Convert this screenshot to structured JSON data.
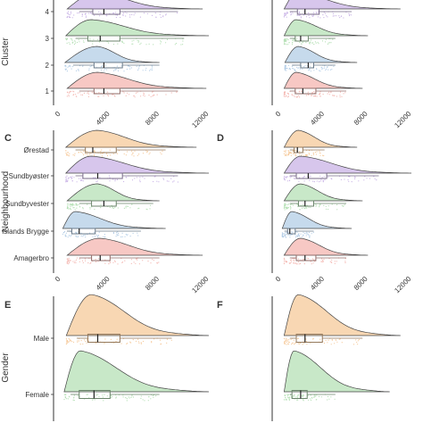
{
  "chart_data": [
    {
      "id": "A",
      "panel_label": "",
      "type": "raincloud",
      "ylabel": "Cluster",
      "xlabel": "",
      "xlim": [
        0,
        12000
      ],
      "xticks": [
        "0",
        "4000",
        "8000",
        "12000"
      ],
      "categories": [
        "4",
        "3",
        "2",
        "1"
      ],
      "colors": [
        "#c9b3e6",
        "#b5e0b5",
        "#b3cde6",
        "#f4b6b0"
      ],
      "density_max": [
        11500,
        12000,
        8000,
        11800
      ],
      "density_peak": [
        3000,
        2500,
        3000,
        3000
      ],
      "box": [
        [
          1500,
          2600,
          3500,
          4800,
          9500
        ],
        [
          1200,
          2200,
          3200,
          4800,
          10000
        ],
        [
          1000,
          2700,
          3500,
          5000,
          8000
        ],
        [
          1500,
          2700,
          3500,
          4800,
          9500
        ]
      ]
    },
    {
      "id": "B",
      "panel_label": "",
      "type": "raincloud",
      "ylabel": "",
      "xlabel": "",
      "xlim": [
        0,
        12000
      ],
      "xticks": [
        "0",
        "4000",
        "8000",
        "12000"
      ],
      "categories": [
        "4",
        "3",
        "2",
        "1"
      ],
      "colors": [
        "#c9b3e6",
        "#b5e0b5",
        "#b3cde6",
        "#f4b6b0"
      ],
      "density_max": [
        11000,
        8000,
        7000,
        7500
      ],
      "density_peak": [
        1500,
        1400,
        1600,
        1400
      ],
      "box": [
        [
          800,
          1500,
          2200,
          3500,
          6500
        ],
        [
          800,
          1300,
          1800,
          2500,
          5000
        ],
        [
          1000,
          1800,
          2500,
          3000,
          5000
        ],
        [
          800,
          1300,
          2000,
          3200,
          6000
        ]
      ]
    },
    {
      "id": "C",
      "panel_label": "C",
      "type": "raincloud",
      "ylabel": "Neighbourhood",
      "xlabel": "",
      "xlim": [
        0,
        12000
      ],
      "xticks": [
        "0",
        "4000",
        "8000",
        "12000"
      ],
      "categories": [
        "Ørestad",
        "Sundbyøster",
        "Sundbyvester",
        "Islands Brygge",
        "Amagerbro"
      ],
      "colors": [
        "#f6c99a",
        "#c9b3e6",
        "#b5e0b5",
        "#b3cde6",
        "#f4b6b0"
      ],
      "density_max": [
        11000,
        12000,
        8000,
        8500,
        11500
      ],
      "density_peak": [
        3000,
        2500,
        3000,
        1200,
        3200
      ],
      "box": [
        [
          1200,
          2000,
          2600,
          4500,
          8500
        ],
        [
          1200,
          1800,
          3000,
          5000,
          9500
        ],
        [
          1500,
          2500,
          3500,
          4500,
          7500
        ],
        [
          500,
          900,
          1500,
          2800,
          6500
        ],
        [
          1500,
          2500,
          3200,
          4000,
          8000
        ]
      ]
    },
    {
      "id": "D",
      "panel_label": "D",
      "type": "raincloud",
      "ylabel": "",
      "xlabel": "",
      "xlim": [
        0,
        12000
      ],
      "xticks": [
        "0",
        "4000",
        "8000",
        "12000"
      ],
      "categories": [
        "Ørestad",
        "Sundbyøster",
        "Sundbyvester",
        "Islands Brygge",
        "Amagerbro"
      ],
      "colors": [
        "#f6c99a",
        "#c9b3e6",
        "#b5e0b5",
        "#b3cde6",
        "#f4b6b0"
      ],
      "density_max": [
        7000,
        12000,
        7500,
        6500,
        8000
      ],
      "density_peak": [
        1600,
        1800,
        1800,
        1000,
        1800
      ],
      "box": [
        [
          800,
          1200,
          1500,
          2000,
          4000
        ],
        [
          800,
          1400,
          2500,
          4200,
          9000
        ],
        [
          800,
          1600,
          2200,
          3000,
          6000
        ],
        [
          300,
          600,
          800,
          1300,
          3000
        ],
        [
          800,
          1400,
          2200,
          3200,
          6000
        ]
      ]
    },
    {
      "id": "E",
      "panel_label": "E",
      "type": "raincloud",
      "ylabel": "Gender",
      "xlabel": "",
      "xlim": [
        0,
        12000
      ],
      "xticks": [],
      "categories": [
        "Male",
        "Female"
      ],
      "colors": [
        "#f6c99a",
        "#b5e0b5"
      ],
      "density_max": [
        12000,
        12000
      ],
      "density_peak": [
        2500,
        1600
      ],
      "box": [
        [
          1300,
          2200,
          3000,
          4800,
          9000
        ],
        [
          800,
          1500,
          2700,
          4000,
          8000
        ]
      ]
    },
    {
      "id": "F",
      "panel_label": "F",
      "type": "raincloud",
      "ylabel": "",
      "xlabel": "",
      "xlim": [
        0,
        12000
      ],
      "xticks": [],
      "categories": [
        "Male",
        "Female"
      ],
      "colors": [
        "#f6c99a",
        "#b5e0b5"
      ],
      "density_max": [
        11000,
        10000
      ],
      "density_peak": [
        1600,
        1200
      ],
      "box": [
        [
          800,
          1400,
          2200,
          3800,
          7500
        ],
        [
          800,
          1000,
          1800,
          2400,
          5000
        ]
      ]
    }
  ]
}
